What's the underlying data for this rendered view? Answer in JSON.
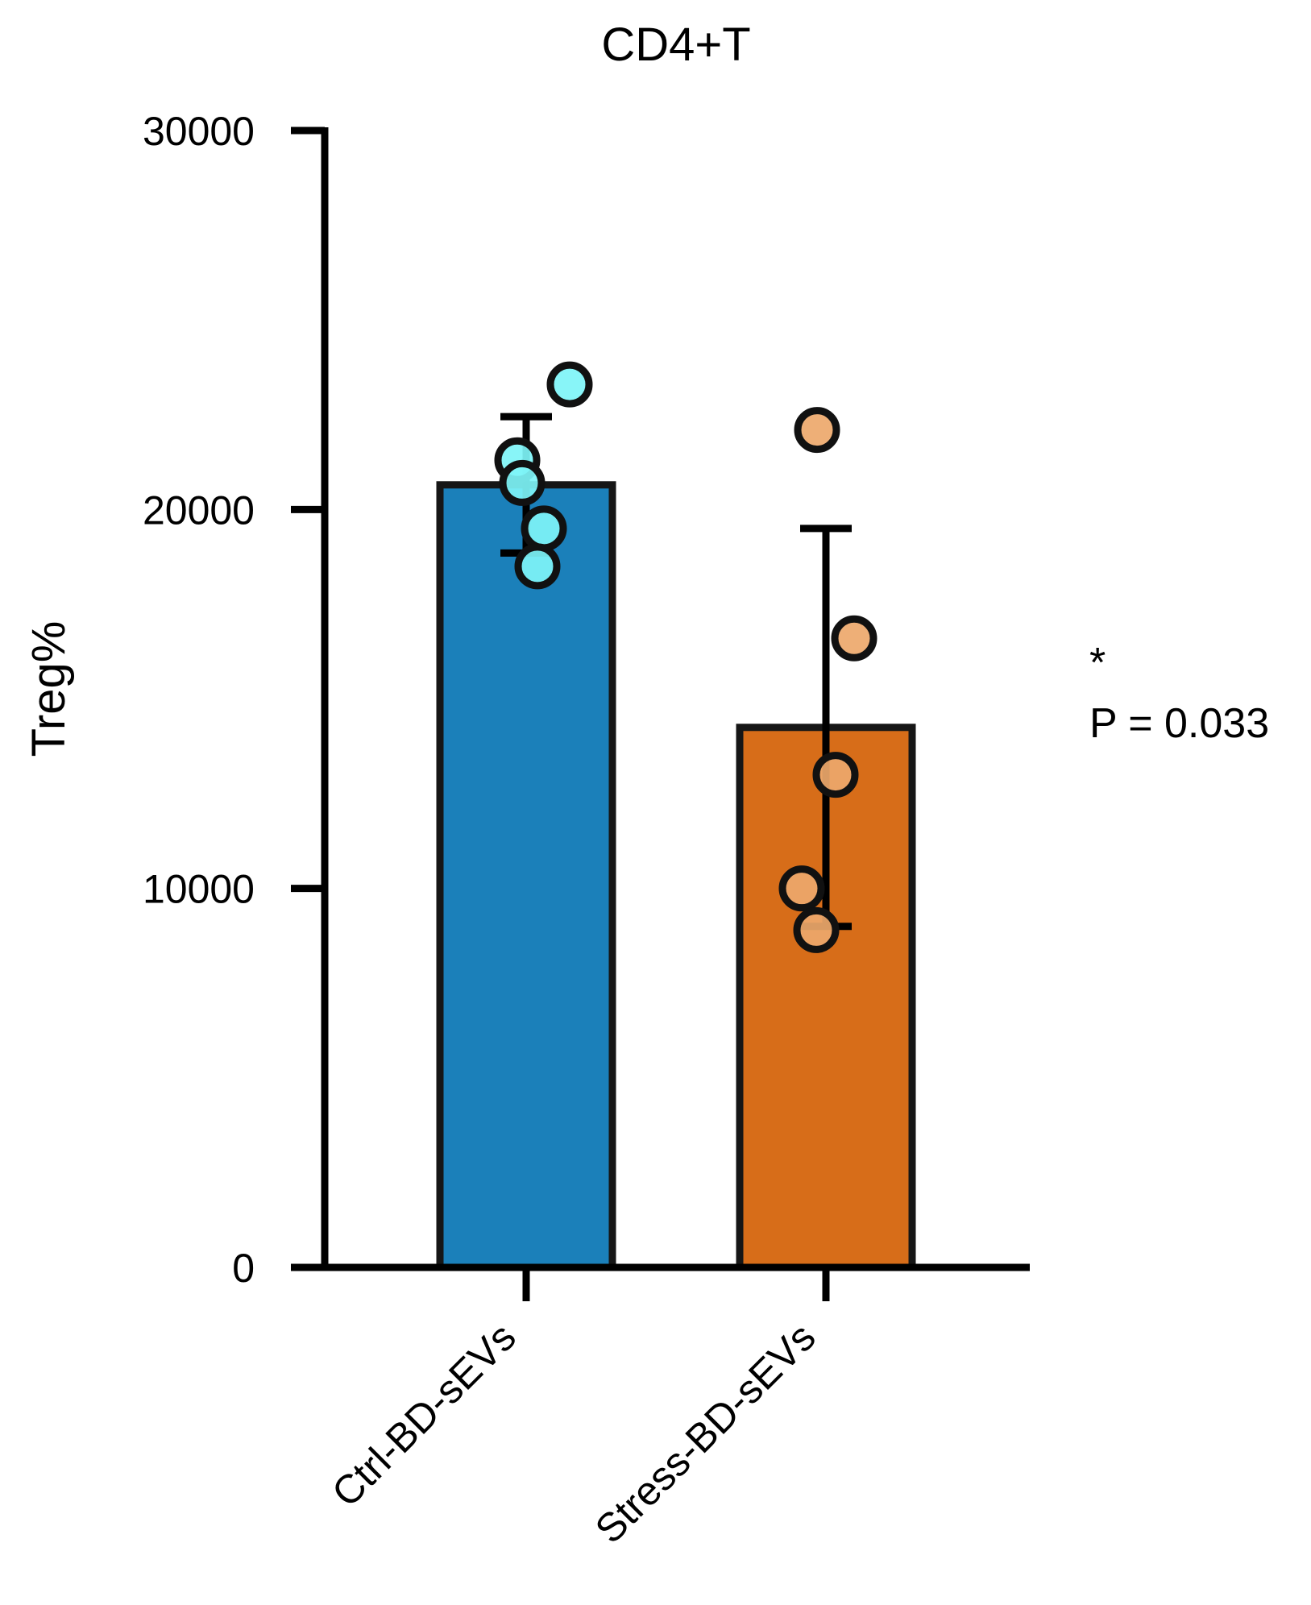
{
  "chart_data": {
    "type": "bar",
    "title": "CD4+T",
    "xlabel": "",
    "ylabel": "Treg%",
    "ylim": [
      0,
      30000
    ],
    "yticks": [
      0,
      10000,
      20000,
      30000
    ],
    "yticklabels": [
      "0",
      "10000",
      "20000",
      "30000"
    ],
    "categories": [
      "Ctrl-BD-sEVs",
      "Stress-BD-sEVs"
    ],
    "values": [
      20650,
      14250
    ],
    "errors": [
      1800,
      5250
    ],
    "bar_colors": [
      "#1b80ba",
      "#d76d19"
    ],
    "points": [
      [
        23300,
        21300,
        20700,
        19500,
        18500
      ],
      [
        22100,
        16600,
        13000,
        10000,
        8900
      ]
    ],
    "point_colors": [
      "#7ef4f7",
      "#eda86b"
    ],
    "annotation": {
      "star": "*",
      "pvalue": "P = 0.033"
    }
  }
}
